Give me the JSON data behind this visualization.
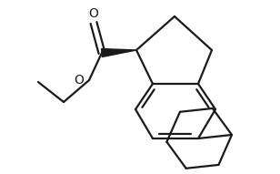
{
  "bg_color": "#ffffff",
  "line_color": "#1a1a1a",
  "line_width": 1.6,
  "fig_width": 3.08,
  "fig_height": 1.91,
  "dpi": 100,
  "xlim": [
    0,
    308
  ],
  "ylim": [
    0,
    191
  ]
}
